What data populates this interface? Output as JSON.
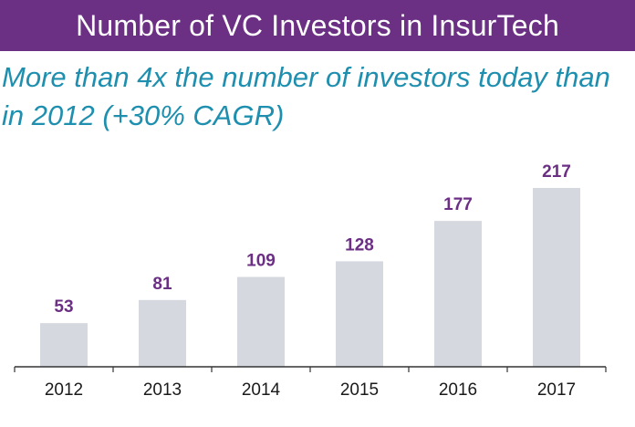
{
  "chart_data": {
    "type": "bar",
    "title": "Number of VC Investors in InsurTech",
    "subtitle": "More than 4x the number of investors today than in 2012 (+30% CAGR)",
    "categories": [
      "2012",
      "2013",
      "2014",
      "2015",
      "2016",
      "2017"
    ],
    "values": [
      53,
      81,
      109,
      128,
      177,
      217
    ],
    "data_labels": [
      "53",
      "81",
      "109",
      "128",
      "177",
      "217"
    ],
    "xlabel": "",
    "ylabel": "",
    "ylim": [
      0,
      217
    ],
    "grid": false,
    "legend": "none"
  },
  "colors": {
    "title_bg": "#6b2f83",
    "title_text": "#ffffff",
    "subtitle": "#1e8fae",
    "bar": "#d5d8df",
    "value_label": "#6b2f83",
    "axis": "#333333",
    "tick_label": "#1a1a1a"
  }
}
